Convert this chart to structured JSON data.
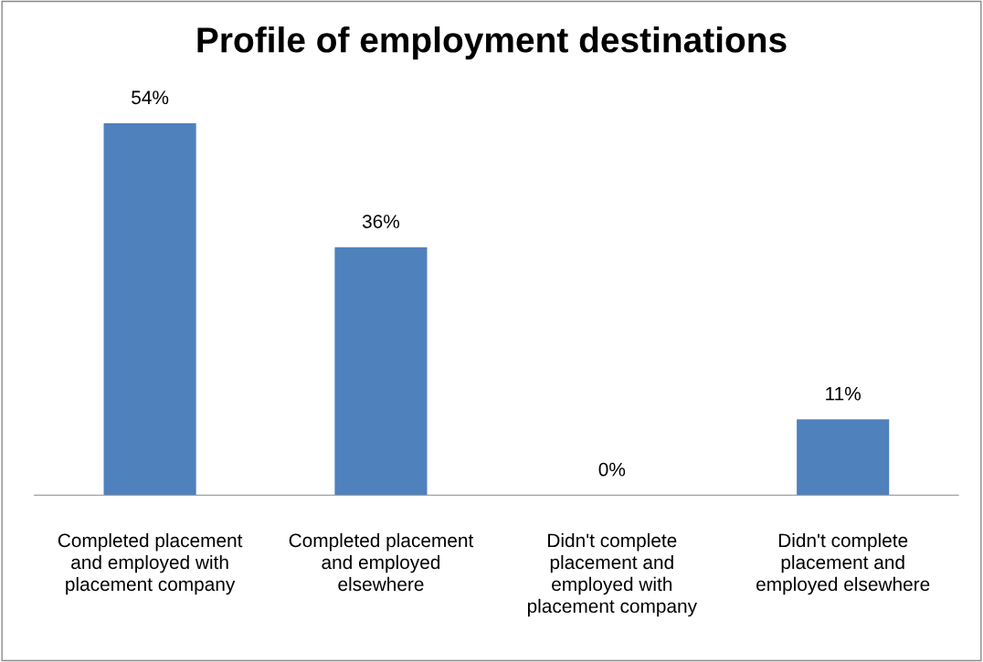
{
  "chart_data": {
    "type": "bar",
    "title": "Profile of employment destinations",
    "categories": [
      "Completed placement\nand employed with\nplacement company",
      "Completed placement\nand employed\nelsewhere",
      "Didn't complete\nplacement and\nemployed with\nplacement company",
      "Didn't complete\nplacement and\nemployed elsewhere"
    ],
    "values": [
      54,
      36,
      0,
      11
    ],
    "value_labels": [
      "54%",
      "36%",
      "0%",
      "11%"
    ],
    "color": "#4f81bd",
    "tick_labels": "x",
    "grid": false,
    "legend": false
  }
}
